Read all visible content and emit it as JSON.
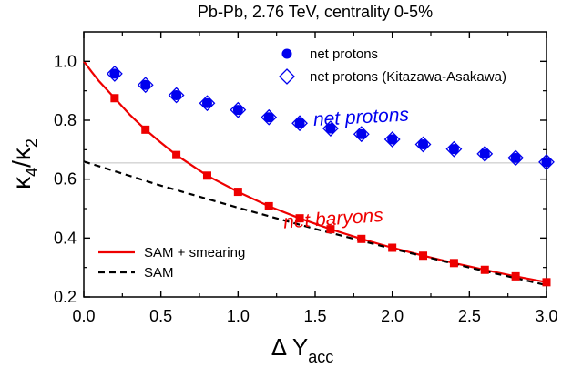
{
  "chart_data": {
    "type": "line",
    "title": "Pb-Pb, 2.76 TeV, centrality 0-5%",
    "xlabel_main": "Δ Y",
    "xlabel_sub": "acc",
    "ylabel": "κ4/κ2",
    "xlim": [
      0.0,
      3.0
    ],
    "ylim": [
      0.2,
      1.1
    ],
    "xticks": [
      0.0,
      0.5,
      1.0,
      1.5,
      2.0,
      2.5,
      3.0
    ],
    "xtick_labels": [
      "0.0",
      "0.5",
      "1.0",
      "1.5",
      "2.0",
      "2.5",
      "3.0"
    ],
    "yticks": [
      0.2,
      0.4,
      0.6,
      0.8,
      1.0
    ],
    "ytick_labels": [
      "0.2",
      "0.4",
      "0.6",
      "0.8",
      "1.0"
    ],
    "grid": false,
    "reference_line": {
      "y": 0.655,
      "color": "#c0c0c0"
    },
    "series": [
      {
        "name": "net protons",
        "kind": "points",
        "marker": "circle",
        "color": "#0000ee",
        "x": [
          0.2,
          0.4,
          0.6,
          0.8,
          1.0,
          1.2,
          1.4,
          1.6,
          1.8,
          2.0,
          2.2,
          2.4,
          2.6,
          2.8,
          3.0
        ],
        "y": [
          0.958,
          0.92,
          0.885,
          0.858,
          0.835,
          0.81,
          0.79,
          0.772,
          0.753,
          0.735,
          0.718,
          0.702,
          0.686,
          0.672,
          0.658
        ]
      },
      {
        "name": "net protons (Kitazawa-Asakawa)",
        "kind": "points",
        "marker": "diamond",
        "color": "#0000ee",
        "x": [
          0.2,
          0.4,
          0.6,
          0.8,
          1.0,
          1.2,
          1.4,
          1.6,
          1.8,
          2.0,
          2.2,
          2.4,
          2.6,
          2.8,
          3.0
        ],
        "y": [
          0.958,
          0.92,
          0.885,
          0.858,
          0.835,
          0.81,
          0.79,
          0.772,
          0.753,
          0.735,
          0.718,
          0.702,
          0.686,
          0.672,
          0.658
        ]
      },
      {
        "name": "net baryons points",
        "kind": "points",
        "marker": "square",
        "color": "#ee0000",
        "x": [
          0.2,
          0.4,
          0.6,
          0.8,
          1.0,
          1.2,
          1.4,
          1.6,
          1.8,
          2.0,
          2.2,
          2.4,
          2.6,
          2.8,
          3.0
        ],
        "y": [
          0.875,
          0.768,
          0.682,
          0.612,
          0.557,
          0.508,
          0.467,
          0.43,
          0.397,
          0.367,
          0.34,
          0.315,
          0.292,
          0.27,
          0.25
        ]
      },
      {
        "name": "SAM + smearing",
        "kind": "line",
        "style": "solid",
        "color": "#ee0000",
        "x": [
          0.0,
          0.05,
          0.1,
          0.2,
          0.3,
          0.4,
          0.5,
          0.6,
          0.8,
          1.0,
          1.2,
          1.4,
          1.6,
          1.8,
          2.0,
          2.2,
          2.4,
          2.6,
          2.8,
          3.0
        ],
        "y": [
          1.0,
          0.965,
          0.932,
          0.875,
          0.818,
          0.768,
          0.724,
          0.682,
          0.612,
          0.557,
          0.508,
          0.467,
          0.43,
          0.397,
          0.367,
          0.34,
          0.315,
          0.292,
          0.27,
          0.25
        ]
      },
      {
        "name": "SAM",
        "kind": "line",
        "style": "dashed",
        "color": "#000000",
        "x": [
          0.0,
          0.5,
          1.0,
          1.5,
          2.0,
          2.5,
          3.0
        ],
        "y": [
          0.66,
          0.578,
          0.503,
          0.431,
          0.364,
          0.3,
          0.24
        ]
      }
    ],
    "annotations": [
      {
        "text": "net protons",
        "color": "#0000ee",
        "x": 1.8,
        "y": 0.79
      },
      {
        "text": "net baryons",
        "color": "#ee0000",
        "x": 1.62,
        "y": 0.445
      }
    ],
    "legend_top": {
      "position": "top-right",
      "entries": [
        {
          "label": "net protons",
          "marker": "circle",
          "color": "#0000ee"
        },
        {
          "label": "net protons (Kitazawa-Asakawa)",
          "marker": "diamond",
          "color": "#0000ee"
        }
      ]
    },
    "legend_bottom": {
      "position": "bottom-left",
      "entries": [
        {
          "label": "SAM + smearing",
          "style": "solid",
          "color": "#ee0000"
        },
        {
          "label": "SAM",
          "style": "dashed",
          "color": "#000000"
        }
      ]
    }
  }
}
